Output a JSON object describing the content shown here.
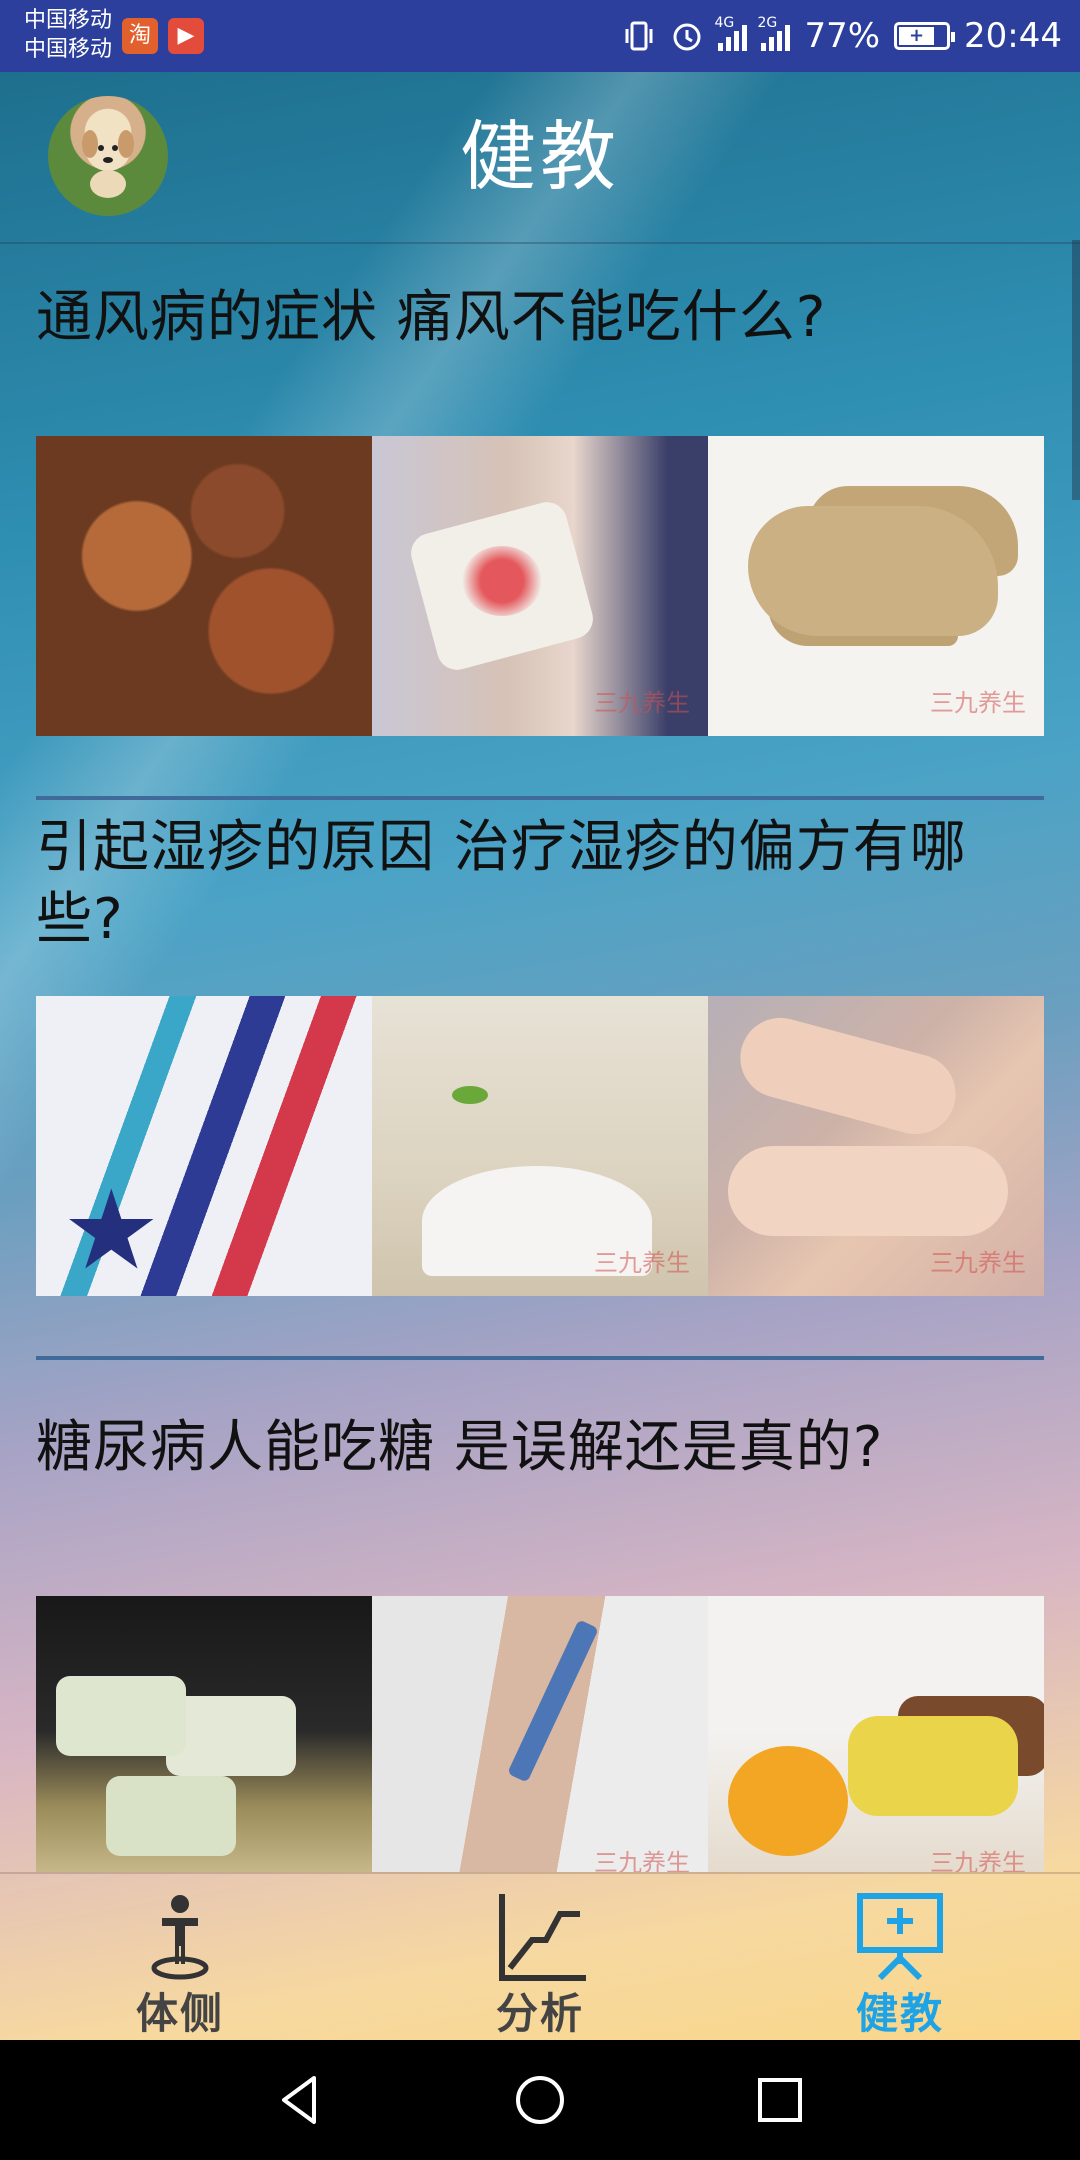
{
  "status_bar": {
    "carrier_1": "中国移动",
    "carrier_2": "中国移动",
    "app_icon_1": "淘",
    "app_icon_2": "▶",
    "network_1": "4G",
    "network_2": "2G",
    "battery_percent": "77%",
    "time": "20:44"
  },
  "header": {
    "title": "健教",
    "avatar_icon": "dog-avatar"
  },
  "articles": [
    {
      "title": "通风病的症状 痛风不能吃什么?",
      "thumbs": [
        "braised-pork-trotters",
        "knee-with-bandage",
        "ginger-root"
      ],
      "watermark": "三九养生"
    },
    {
      "title": "引起湿疹的原因 治疗湿疹的偏方有哪些?",
      "thumbs": [
        "striped-towel",
        "salt-pile",
        "scratching-arm"
      ],
      "watermark": "三九养生"
    },
    {
      "title": "糖尿病人能吃糖 是误解还是真的?",
      "thumbs": [
        "sugar-candies",
        "insulin-injection",
        "fruit-and-candy"
      ],
      "watermark": "三九养生"
    }
  ],
  "bottom_nav": [
    {
      "label": "体侧",
      "icon": "person-standing-icon",
      "color": "#444444"
    },
    {
      "label": "分析",
      "icon": "line-chart-icon",
      "color": "#444444"
    },
    {
      "label": "健教",
      "icon": "presentation-board-icon",
      "color": "#1ea3e6"
    }
  ],
  "system_nav": {
    "back": "back-icon",
    "home": "home-icon",
    "recents": "recents-icon"
  }
}
